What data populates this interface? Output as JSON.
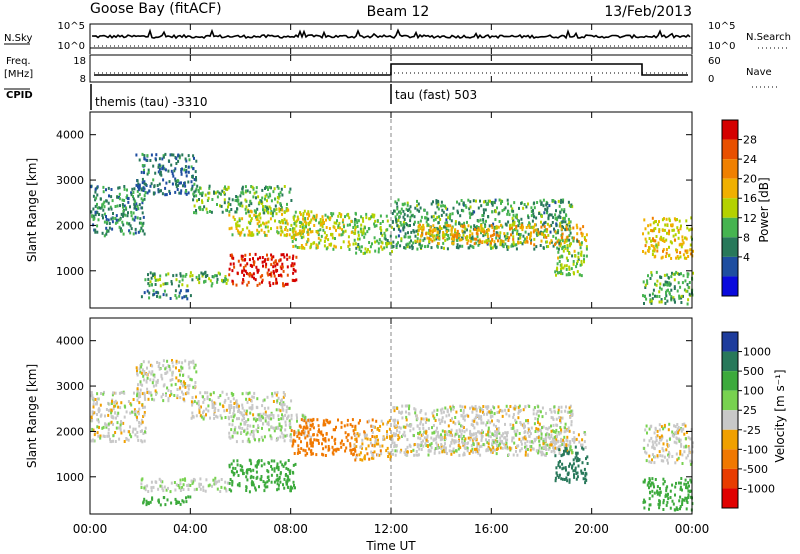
{
  "header": {
    "station": "Goose Bay (fitACF)",
    "beam": "Beam 12",
    "date": "13/Feb/2013"
  },
  "top_panels": {
    "nsky_label": "N.Sky",
    "nsearch_label": "N.Search",
    "noise_ticks_left": [
      "10^5",
      "10^0"
    ],
    "noise_ticks_right": [
      "10^5",
      "10^0"
    ],
    "freq_label_1": "Freq.",
    "freq_label_2": "[MHz]",
    "freq_ticks": [
      "18",
      "8"
    ],
    "nave_label": "Nave",
    "nave_ticks": [
      "60",
      "0"
    ],
    "cpid_label": "CPID",
    "cpid_1": "themis (tau) -3310",
    "cpid_2": "tau (fast) 503"
  },
  "power_panel": {
    "ylabel": "Slant Range [km]",
    "yticks": [
      "4000",
      "3000",
      "2000",
      "1000"
    ],
    "cbar_label": "Power [dB]",
    "cbar_ticks": [
      "28",
      "24",
      "20",
      "16",
      "12",
      "8",
      "4"
    ],
    "cbar_colors": [
      "#d40000",
      "#e85000",
      "#f08000",
      "#f0b000",
      "#b4d200",
      "#46b450",
      "#28785a",
      "#1e4ea0",
      "#0a0adc"
    ]
  },
  "velocity_panel": {
    "ylabel": "Slant Range [km]",
    "yticks": [
      "4000",
      "3000",
      "2000",
      "1000"
    ],
    "cbar_label": "Velocity [m s⁻¹]",
    "cbar_ticks": [
      "1000",
      "500",
      "100",
      "25",
      "-25",
      "-100",
      "-500",
      "-1000"
    ],
    "cbar_colors": [
      "#1e3c9c",
      "#28785a",
      "#3caa3c",
      "#78d250",
      "#c8c8c8",
      "#f0a000",
      "#f07800",
      "#e83c00",
      "#e00000"
    ]
  },
  "xaxis": {
    "ticks": [
      "00:00",
      "04:00",
      "08:00",
      "12:00",
      "16:00",
      "20:00",
      "00:00"
    ],
    "label": "Time UT"
  },
  "chart_data": {
    "type": "heatmap",
    "x_range_hours": [
      0,
      24
    ],
    "y_range_km": [
      180,
      4500
    ],
    "mode_change_hour": 12,
    "scatter_regions": [
      {
        "t0": 0.0,
        "t1": 2.2,
        "r0": 1800,
        "r1": 2900,
        "power": 8,
        "velocity": 0
      },
      {
        "t0": 1.8,
        "t1": 4.2,
        "r0": 2700,
        "r1": 3600,
        "power": 6,
        "velocity": 0
      },
      {
        "t0": 4.0,
        "t1": 8.0,
        "r0": 2300,
        "r1": 2900,
        "power": 10,
        "velocity": 0
      },
      {
        "t0": 5.5,
        "t1": 8.8,
        "r0": 1800,
        "r1": 2400,
        "power": 15,
        "velocity": 20
      },
      {
        "t0": 8.0,
        "t1": 10.6,
        "r0": 1500,
        "r1": 2300,
        "power": 14,
        "velocity": -300
      },
      {
        "t0": 2.0,
        "t1": 5.5,
        "r0": 700,
        "r1": 1000,
        "power": 10,
        "velocity": 20
      },
      {
        "t0": 5.5,
        "t1": 8.2,
        "r0": 700,
        "r1": 1400,
        "power": 27,
        "velocity": 300
      },
      {
        "t0": 2.0,
        "t1": 4.0,
        "r0": 400,
        "r1": 600,
        "power": 6,
        "velocity": 200
      },
      {
        "t0": 10.5,
        "t1": 12.0,
        "r0": 1400,
        "r1": 2300,
        "power": 12,
        "velocity": -60
      },
      {
        "t0": 12.0,
        "t1": 19.2,
        "r0": 1500,
        "r1": 2600,
        "power": 9,
        "velocity": 0
      },
      {
        "t0": 13.0,
        "t1": 19.8,
        "r0": 1600,
        "r1": 2050,
        "power": 18,
        "velocity": 0
      },
      {
        "t0": 18.5,
        "t1": 19.8,
        "r0": 900,
        "r1": 1700,
        "power": 12,
        "velocity": 600
      },
      {
        "t0": 22.0,
        "t1": 24.0,
        "r0": 1300,
        "r1": 2200,
        "power": 16,
        "velocity": 0
      },
      {
        "t0": 22.0,
        "t1": 24.0,
        "r0": 300,
        "r1": 1000,
        "power": 10,
        "velocity": 300
      }
    ]
  }
}
